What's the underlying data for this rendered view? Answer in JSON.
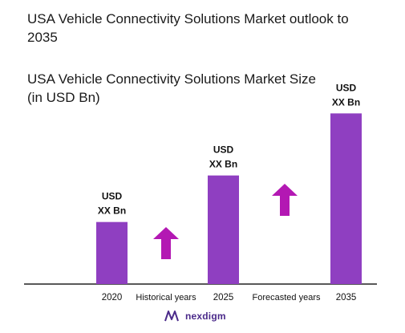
{
  "header": {
    "title": "USA Vehicle Connectivity Solutions Market outlook to 2035",
    "subtitle": "USA Vehicle Connectivity Solutions Market Size (in USD Bn)"
  },
  "brand": {
    "name": "nexdigm",
    "logo_icon": "nexdigm-logo-icon"
  },
  "colors": {
    "bar": "#8f3fc1",
    "arrow": "#b318b3",
    "axis": "#222222",
    "brand": "#4b2a8a"
  },
  "chart_data": {
    "type": "bar",
    "categories": [
      "2020",
      "2025",
      "2035"
    ],
    "values": [
      1,
      1.75,
      2.75
    ],
    "data_labels": [
      [
        "USD",
        "XX Bn"
      ],
      [
        "USD",
        "XX Bn"
      ],
      [
        "USD",
        "XX Bn"
      ]
    ],
    "period_labels": [
      "Historical years",
      "Forecasted years"
    ],
    "period_arrows": [
      "up-arrow-icon",
      "up-arrow-icon"
    ],
    "title": "USA Vehicle Connectivity Solutions Market Size (in USD Bn)",
    "xlabel": "",
    "ylabel": "",
    "ylim": [
      0,
      3
    ],
    "grid": false,
    "legend": "none"
  }
}
